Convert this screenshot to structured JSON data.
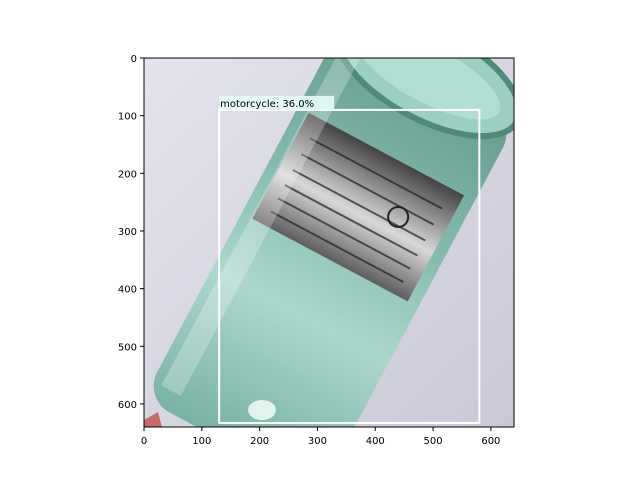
{
  "image": {
    "description_icon": "glass-bottle-photo",
    "colors": {
      "background": "#dcdce6",
      "bottle_glass": "#8fc7b8",
      "label": "#8a8a8a",
      "box": "#ffffff"
    }
  },
  "axes": {
    "xlim": [
      0,
      640
    ],
    "ylim": [
      640,
      0
    ],
    "x_ticks": [
      0,
      100,
      200,
      300,
      400,
      500,
      600
    ],
    "y_ticks": [
      0,
      100,
      200,
      300,
      400,
      500,
      600
    ]
  },
  "detections": [
    {
      "label": "motorcycle: 36.0%",
      "x0": 130,
      "y0": 90,
      "x1": 580,
      "y1": 633,
      "color": "#ffffff"
    }
  ]
}
